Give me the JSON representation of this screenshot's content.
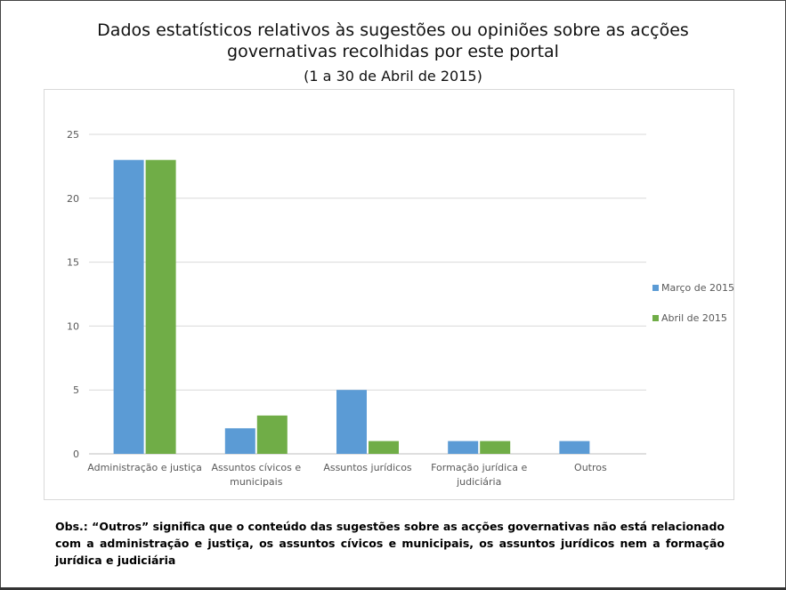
{
  "header": {
    "title_line1": "Dados estatísticos relativos às sugestões ou opiniões sobre as acções",
    "title_line2": "governativas recolhidas por este portal",
    "subtitle": "(1 a 30 de Abril de 2015)"
  },
  "chart_data": {
    "type": "bar",
    "categories": [
      [
        "Administração e justiça"
      ],
      [
        "Assuntos cívicos e",
        "municipais"
      ],
      [
        "Assuntos jurídicos"
      ],
      [
        "Formação jurídica e",
        "judiciária"
      ],
      [
        "Outros"
      ]
    ],
    "series": [
      {
        "name": "Março de 2015",
        "color": "#5b9bd5",
        "values": [
          23,
          2,
          5,
          1,
          1
        ]
      },
      {
        "name": "Abril de 2015",
        "color": "#70ad47",
        "values": [
          23,
          3,
          1,
          1,
          0
        ]
      }
    ],
    "ylim": [
      0,
      25
    ],
    "yticks": [
      0,
      5,
      10,
      15,
      20,
      25
    ],
    "grid": true,
    "legend": "right"
  },
  "note": {
    "text": "Obs.: “Outros” significa que o conteúdo das sugestões sobre as acções governativas não está relacionado com a administração e justiça, os assuntos cívicos e municipais, os assuntos jurídicos nem a formação jurídica e judiciária"
  }
}
